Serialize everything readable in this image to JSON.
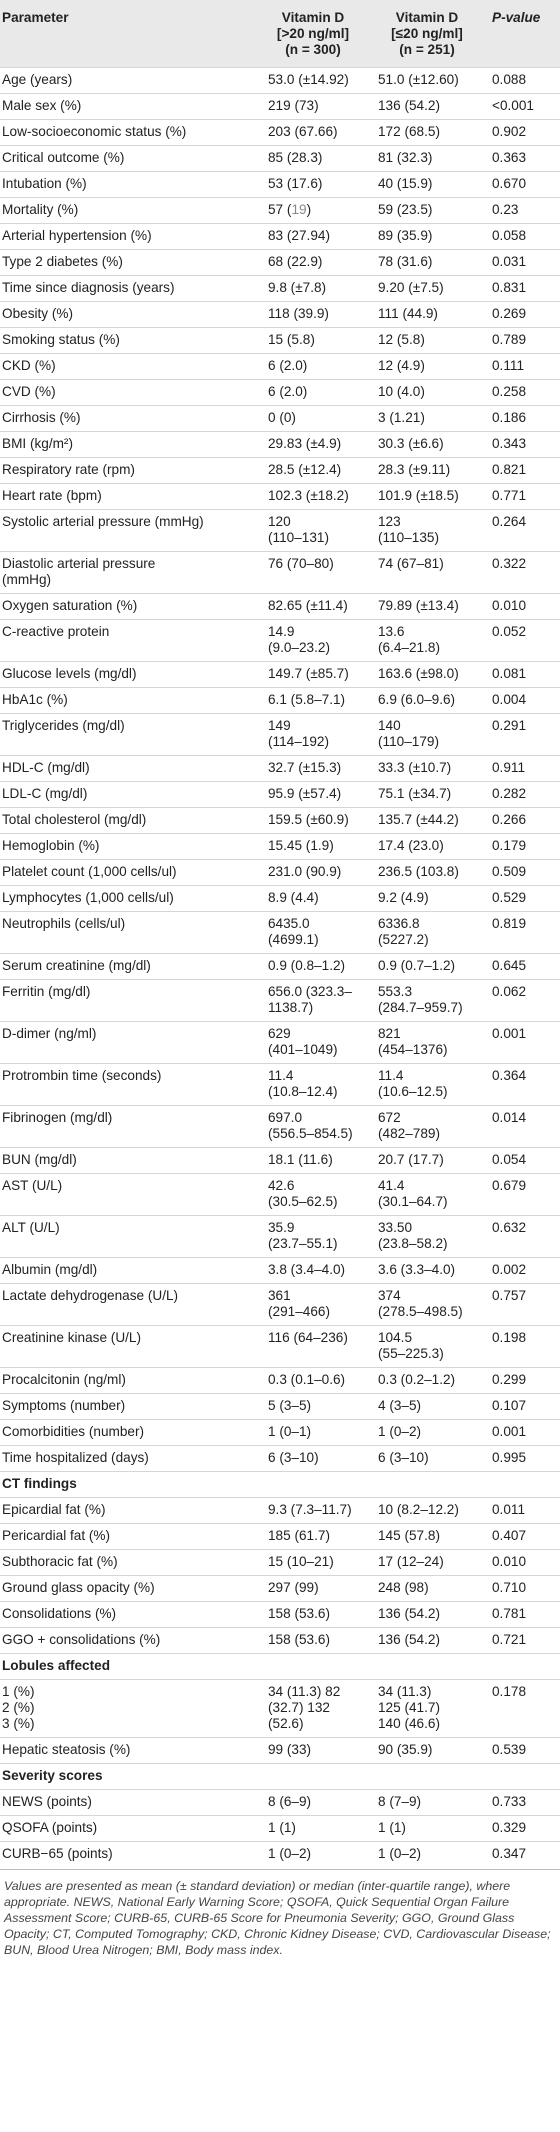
{
  "header": {
    "parameter": "Parameter",
    "col1": [
      "Vitamin D",
      "[>20 ng/ml]",
      "(n = 300)"
    ],
    "col2": [
      "Vitamin D",
      "[≤20 ng/ml]",
      "(n = 251)"
    ],
    "pvalue": "P-value"
  },
  "rows": [
    {
      "p": "Age (years)",
      "a": "53.0 (±14.92)",
      "b": "51.0 (±12.60)",
      "v": "0.088"
    },
    {
      "p": "Male sex (%)",
      "a": "219 (73)",
      "b": "136 (54.2)",
      "v": "<0.001"
    },
    {
      "p": "Low-socioeconomic status (%)",
      "a": "203 (67.66)",
      "b": "172 (68.5)",
      "v": "0.902"
    },
    {
      "p": "Critical outcome (%)",
      "a": "85 (28.3)",
      "b": "81 (32.3)",
      "v": "0.363"
    },
    {
      "p": "Intubation (%)",
      "a": "53 (17.6)",
      "b": "40 (15.9)",
      "v": "0.670"
    },
    {
      "p": "Mortality (%)",
      "a": "57 (",
      "a_gray": "19",
      "a_end": ")",
      "b": "59 (23.5)",
      "v": "0.23"
    },
    {
      "p": "Arterial hypertension (%)",
      "a": "83 (27.94)",
      "b": "89 (35.9)",
      "v": "0.058"
    },
    {
      "p": "Type 2 diabetes (%)",
      "a": "68 (22.9)",
      "b": "78 (31.6)",
      "v": "0.031"
    },
    {
      "p": "Time since diagnosis (years)",
      "a": "9.8 (±7.8)",
      "b": "9.20 (±7.5)",
      "v": "0.831"
    },
    {
      "p": "Obesity (%)",
      "a": "118 (39.9)",
      "b": "111 (44.9)",
      "v": "0.269"
    },
    {
      "p": "Smoking status (%)",
      "a": "15 (5.8)",
      "b": "12 (5.8)",
      "v": "0.789"
    },
    {
      "p": "CKD (%)",
      "a": "6 (2.0)",
      "b": "12 (4.9)",
      "v": "0.111"
    },
    {
      "p": "CVD (%)",
      "a": "6 (2.0)",
      "b": "10 (4.0)",
      "v": "0.258"
    },
    {
      "p": "Cirrhosis (%)",
      "a": "0 (0)",
      "b": "3 (1.21)",
      "v": "0.186"
    },
    {
      "p": "BMI (kg/m²)",
      "a": "29.83 (±4.9)",
      "b": "30.3 (±6.6)",
      "v": "0.343"
    },
    {
      "p": "Respiratory rate (rpm)",
      "a": "28.5 (±12.4)",
      "b": "28.3 (±9.11)",
      "v": "0.821"
    },
    {
      "p": "Heart rate (bpm)",
      "a": "102.3 (±18.2)",
      "b": "101.9 (±18.5)",
      "v": "0.771"
    },
    {
      "p": "Systolic arterial pressure (mmHg)",
      "a": "120\n(110–131)",
      "b": "123\n(110–135)",
      "v": "0.264"
    },
    {
      "p": "Diastolic arterial pressure\n(mmHg)",
      "a": "76 (70–80)",
      "b": "74 (67–81)",
      "v": "0.322"
    },
    {
      "p": "Oxygen saturation (%)",
      "a": "82.65 (±11.4)",
      "b": "79.89 (±13.4)",
      "v": "0.010"
    },
    {
      "p": "C-reactive protein",
      "a": "14.9\n(9.0–23.2)",
      "b": "13.6\n(6.4–21.8)",
      "v": "0.052"
    },
    {
      "p": "Glucose levels (mg/dl)",
      "a": "149.7 (±85.7)",
      "b": "163.6 (±98.0)",
      "v": "0.081"
    },
    {
      "p": "HbA1c (%)",
      "a": "6.1 (5.8–7.1)",
      "b": "6.9 (6.0–9.6)",
      "v": "0.004"
    },
    {
      "p": "Triglycerides (mg/dl)",
      "a": "149\n(114–192)",
      "b": "140\n(110–179)",
      "v": "0.291"
    },
    {
      "p": "HDL-C (mg/dl)",
      "a": "32.7 (±15.3)",
      "b": "33.3 (±10.7)",
      "v": "0.911"
    },
    {
      "p": "LDL-C (mg/dl)",
      "a": "95.9 (±57.4)",
      "b": "75.1 (±34.7)",
      "v": "0.282"
    },
    {
      "p": "Total cholesterol (mg/dl)",
      "a": "159.5 (±60.9)",
      "b": "135.7 (±44.2)",
      "v": "0.266"
    },
    {
      "p": "Hemoglobin (%)",
      "a": "15.45 (1.9)",
      "b": "17.4 (23.0)",
      "v": "0.179"
    },
    {
      "p": "Platelet count (1,000 cells/ul)",
      "a": "231.0 (90.9)",
      "b": "236.5 (103.8)",
      "v": "0.509"
    },
    {
      "p": "Lymphocytes (1,000 cells/ul)",
      "a": "8.9 (4.4)",
      "b": "9.2 (4.9)",
      "v": "0.529"
    },
    {
      "p": "Neutrophils (cells/ul)",
      "a": "6435.0\n(4699.1)",
      "b": "6336.8\n(5227.2)",
      "v": "0.819"
    },
    {
      "p": "Serum creatinine (mg/dl)",
      "a": "0.9 (0.8–1.2)",
      "b": "0.9 (0.7–1.2)",
      "v": "0.645"
    },
    {
      "p": "Ferritin (mg/dl)",
      "a": "656.0 (323.3–\n1138.7)",
      "b": "553.3\n(284.7–959.7)",
      "v": "0.062"
    },
    {
      "p": "D-dimer (ng/ml)",
      "a": "629\n(401–1049)",
      "b": "821\n(454–1376)",
      "v": "0.001"
    },
    {
      "p": "Protrombin time (seconds)",
      "a": "11.4\n(10.8–12.4)",
      "b": "11.4\n(10.6–12.5)",
      "v": "0.364"
    },
    {
      "p": "Fibrinogen (mg/dl)",
      "a": "697.0\n(556.5–854.5)",
      "b": "672\n(482–789)",
      "v": "0.014"
    },
    {
      "p": "BUN (mg/dl)",
      "a": "18.1 (11.6)",
      "b": "20.7 (17.7)",
      "v": "0.054"
    },
    {
      "p": "AST (U/L)",
      "a": "42.6\n(30.5–62.5)",
      "b": "41.4\n(30.1–64.7)",
      "v": "0.679"
    },
    {
      "p": "ALT (U/L)",
      "a": "35.9\n(23.7–55.1)",
      "b": "33.50\n(23.8–58.2)",
      "v": "0.632"
    },
    {
      "p": "Albumin (mg/dl)",
      "a": "3.8 (3.4–4.0)",
      "b": "3.6 (3.3–4.0)",
      "v": "0.002"
    },
    {
      "p": "Lactate dehydrogenase (U/L)",
      "a": "361\n(291–466)",
      "b": "374\n(278.5–498.5)",
      "v": "0.757"
    },
    {
      "p": "Creatinine kinase (U/L)",
      "a": "116 (64–236)",
      "b": "104.5\n(55–225.3)",
      "v": "0.198"
    },
    {
      "p": "Procalcitonin (ng/ml)",
      "a": "0.3 (0.1–0.6)",
      "b": "0.3 (0.2–1.2)",
      "v": "0.299"
    },
    {
      "p": "Symptoms (number)",
      "a": "5 (3–5)",
      "b": "4 (3–5)",
      "v": "0.107"
    },
    {
      "p": "Comorbidities (number)",
      "a": "1 (0–1)",
      "b": "1 (0–2)",
      "v": "0.001"
    },
    {
      "p": "Time hospitalized (days)",
      "a": "6 (3–10)",
      "b": "6 (3–10)",
      "v": "0.995"
    },
    {
      "section": "CT findings"
    },
    {
      "p": "Epicardial fat (%)",
      "a": "9.3 (7.3–11.7)",
      "b": "10 (8.2–12.2)",
      "v": "0.011"
    },
    {
      "p": "Pericardial fat (%)",
      "a": "185 (61.7)",
      "b": "145 (57.8)",
      "v": "0.407"
    },
    {
      "p": "Subthoracic fat (%)",
      "a": "15 (10–21)",
      "b": "17 (12–24)",
      "v": "0.010"
    },
    {
      "p": "Ground glass opacity (%)",
      "a": "297 (99)",
      "b": "248 (98)",
      "v": "0.710"
    },
    {
      "p": "Consolidations (%)",
      "a": "158 (53.6)",
      "b": "136 (54.2)",
      "v": "0.781"
    },
    {
      "p": "GGO + consolidations (%)",
      "a": "158 (53.6)",
      "b": "136 (54.2)",
      "v": "0.721"
    },
    {
      "section": "Lobules affected"
    },
    {
      "p": "1 (%)\n2 (%)\n3 (%)",
      "a": "34 (11.3) 82\n(32.7) 132\n(52.6)",
      "b": "34 (11.3)\n125 (41.7)\n140 (46.6)",
      "v": "0.178"
    },
    {
      "p": "Hepatic steatosis (%)",
      "a": "99 (33)",
      "b": "90 (35.9)",
      "v": "0.539"
    },
    {
      "section": "Severity scores"
    },
    {
      "p": "NEWS (points)",
      "a": "8 (6–9)",
      "b": "8 (7–9)",
      "v": "0.733"
    },
    {
      "p": "QSOFA (points)",
      "a": "1 (1)",
      "b": "1 (1)",
      "v": "0.329"
    },
    {
      "p": "CURB−65 (points)",
      "a": "1 (0–2)",
      "b": "1 (0–2)",
      "v": "0.347"
    }
  ],
  "footnote": "Values are presented as mean (± standard deviation) or median (inter-quartile range), where appropriate. NEWS, National Early Warning Score; QSOFA, Quick Sequential Organ Failure Assessment Score; CURB-65, CURB-65 Score for Pneumonia Severity; GGO, Ground Glass Opacity; CT, Computed Tomography; CKD, Chronic Kidney Disease; CVD, Cardiovascular Disease; BUN, Blood Urea Nitrogen; BMI, Body mass index."
}
